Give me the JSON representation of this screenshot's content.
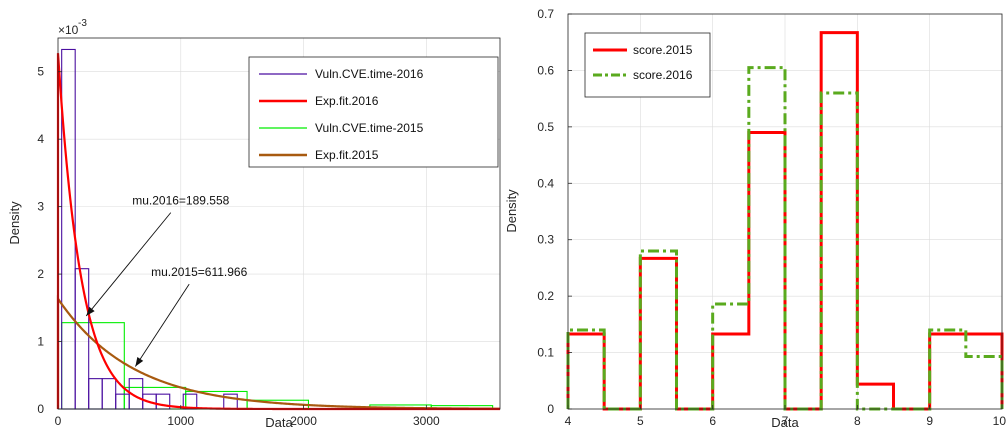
{
  "chart_data": [
    {
      "type": "histogram",
      "xlabel": "Data",
      "ylabel": "Density",
      "y_exponent_label": "×10⁻³",
      "y_exponent_base": "×10",
      "y_exponent_power": "-3",
      "xlim": [
        0,
        3600
      ],
      "ylim": [
        0,
        0.0055
      ],
      "xticks": [
        0,
        1000,
        2000,
        3000
      ],
      "yticks": [
        0,
        0.001,
        0.002,
        0.003,
        0.004,
        0.005
      ],
      "ytick_labels": [
        "0",
        "1",
        "2",
        "3",
        "4",
        "5"
      ],
      "grid": true,
      "legend_position": "top-right",
      "series": [
        {
          "name": "Vuln.CVE.time-2016",
          "kind": "histogram",
          "color": "#4a0fa0",
          "bins": [
            {
              "x0": 30,
              "x1": 140,
              "y": 0.00533
            },
            {
              "x0": 140,
              "x1": 250,
              "y": 0.00208
            },
            {
              "x0": 250,
              "x1": 360,
              "y": 0.00045
            },
            {
              "x0": 360,
              "x1": 470,
              "y": 0.00045
            },
            {
              "x0": 470,
              "x1": 580,
              "y": 0.00022
            },
            {
              "x0": 580,
              "x1": 690,
              "y": 0.00045
            },
            {
              "x0": 690,
              "x1": 800,
              "y": 0.00022
            },
            {
              "x0": 800,
              "x1": 910,
              "y": 0.00022
            },
            {
              "x0": 910,
              "x1": 1020,
              "y": 0.0
            },
            {
              "x0": 1020,
              "x1": 1130,
              "y": 0.00022
            },
            {
              "x0": 1130,
              "x1": 1240,
              "y": 0.0
            },
            {
              "x0": 1240,
              "x1": 1350,
              "y": 0.0
            },
            {
              "x0": 1350,
              "x1": 1460,
              "y": 0.00022
            }
          ]
        },
        {
          "name": "Exp.fit.2016",
          "kind": "exp_pdf",
          "color": "#ff0000",
          "mu": 189.558
        },
        {
          "name": "Vuln.CVE.time-2015",
          "kind": "histogram",
          "color": "#00ee00",
          "bins": [
            {
              "x0": 30,
              "x1": 540,
              "y": 0.00128
            },
            {
              "x0": 540,
              "x1": 1040,
              "y": 0.00032
            },
            {
              "x0": 1040,
              "x1": 1540,
              "y": 0.00026
            },
            {
              "x0": 1540,
              "x1": 2040,
              "y": 0.00013
            },
            {
              "x0": 2040,
              "x1": 2540,
              "y": 0.0
            },
            {
              "x0": 2540,
              "x1": 3040,
              "y": 6e-05
            },
            {
              "x0": 3040,
              "x1": 3540,
              "y": 5e-05
            }
          ]
        },
        {
          "name": "Exp.fit.2015",
          "kind": "exp_pdf",
          "color": "#a85a10",
          "mu": 611.966
        }
      ],
      "annotations": [
        {
          "text": "mu.2016=189.558",
          "x_text": 1000,
          "y_text": 0.00303,
          "x_arrow": 230,
          "y_arrow": 0.00138
        },
        {
          "text": "mu.2015=611.966",
          "x_text": 1150,
          "y_text": 0.00197,
          "x_arrow": 630,
          "y_arrow": 0.00063
        }
      ]
    },
    {
      "type": "stairs",
      "xlabel": "Data",
      "ylabel": "Density",
      "xlim": [
        4,
        10
      ],
      "ylim": [
        0,
        0.7
      ],
      "xticks": [
        4,
        5,
        6,
        7,
        8,
        9,
        10
      ],
      "yticks": [
        0,
        0.1,
        0.2,
        0.3,
        0.4,
        0.5,
        0.6,
        0.7
      ],
      "ytick_labels": [
        "0",
        "0.1",
        "0.2",
        "0.3",
        "0.4",
        "0.5",
        "0.6",
        "0.7"
      ],
      "grid": true,
      "legend_position": "top-left",
      "edges": [
        4,
        4.5,
        5,
        5.5,
        6,
        6.5,
        7,
        7.5,
        8,
        8.5,
        9,
        9.5,
        10
      ],
      "series": [
        {
          "name": "score.2015",
          "color": "#ff0000",
          "dash": "solid",
          "values": [
            0.133,
            0,
            0.267,
            0,
            0.133,
            0.49,
            0,
            0.667,
            0.044,
            0,
            0.133,
            0.133
          ]
        },
        {
          "name": "score.2016",
          "color": "#5aaa1e",
          "dash": "dashdot",
          "values": [
            0.14,
            0,
            0.28,
            0,
            0.186,
            0.605,
            0,
            0.56,
            0,
            0,
            0.14,
            0.093
          ]
        }
      ]
    }
  ]
}
